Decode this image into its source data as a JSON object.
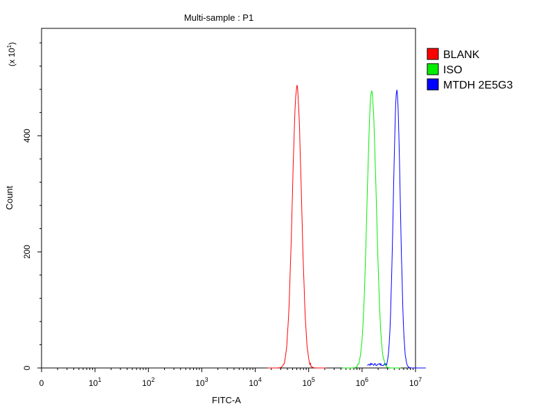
{
  "chart_data": {
    "type": "line",
    "title": "Multi-sample : P1",
    "xlabel": "FITC-A",
    "ylabel": "Count",
    "y_scale_label": "(x 10",
    "y_scale_exp": "1",
    "y_scale_close": ")",
    "x_scale": "log",
    "xlim": [
      0,
      7
    ],
    "ylim": [
      0,
      585
    ],
    "x_ticks": [
      {
        "base": "0",
        "exp": "",
        "value": 0
      },
      {
        "base": "10",
        "exp": "1",
        "value": 1
      },
      {
        "base": "10",
        "exp": "2",
        "value": 2
      },
      {
        "base": "10",
        "exp": "3",
        "value": 3
      },
      {
        "base": "10",
        "exp": "4",
        "value": 4
      },
      {
        "base": "10",
        "exp": "5",
        "value": 5
      },
      {
        "base": "10",
        "exp": "6",
        "value": 6
      },
      {
        "base": "10",
        "exp": "7",
        "value": 7
      }
    ],
    "y_ticks": [
      "0",
      "200",
      "400"
    ],
    "y_tick_values": [
      0,
      200,
      400
    ],
    "y_minor_step": 40,
    "grid": false,
    "legend_position": "top-right",
    "series": [
      {
        "name": "BLANK",
        "color": "#ff0000",
        "peak_log10": 4.78,
        "peak_count": 485,
        "width_log10": 0.085
      },
      {
        "name": "ISO",
        "color": "#00ee00",
        "peak_log10": 6.18,
        "peak_count": 478,
        "width_log10": 0.085
      },
      {
        "name": "MTDH 2E5G3",
        "color": "#0000ff",
        "peak_log10": 6.65,
        "peak_count": 478,
        "width_log10": 0.065
      }
    ]
  }
}
